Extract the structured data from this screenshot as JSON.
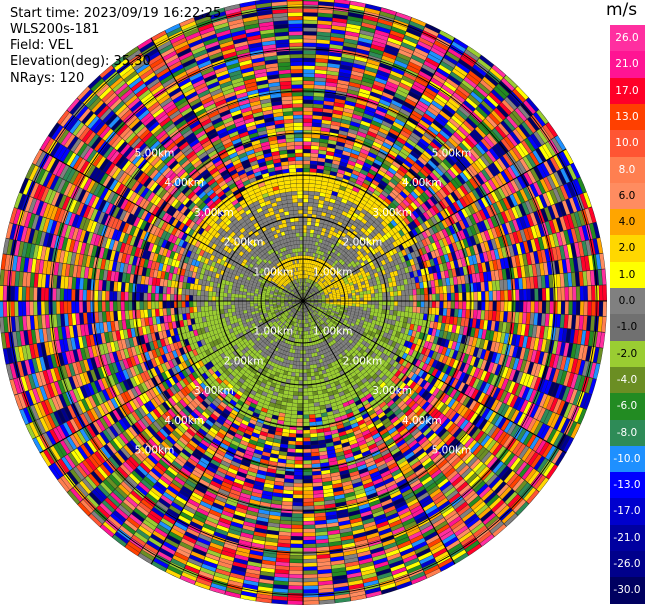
{
  "header": {
    "start_time": "Start time: 2023/09/19 16:22:25",
    "instrument": "WLS200s-181",
    "field": "Field: VEL",
    "elevation": "Elevation(deg): 35.30",
    "nrays": "NRays: 120"
  },
  "colorbar": {
    "unit": "m/s",
    "ticks": [
      "26.0",
      "21.0",
      "17.0",
      "13.0",
      "10.0",
      "8.0",
      "6.0",
      "4.0",
      "2.0",
      "1.0",
      "0.0",
      "-1.0",
      "-2.0",
      "-4.0",
      "-6.0",
      "-8.0",
      "-10.0",
      "-13.0",
      "-17.0",
      "-21.0",
      "-26.0",
      "-30.0"
    ],
    "colors": [
      "#ff2fa0",
      "#ff1493",
      "#ff0028",
      "#ff4000",
      "#ff5533",
      "#ff7f50",
      "#ff8c60",
      "#ffa500",
      "#ffd700",
      "#ffff00",
      "#808080",
      "#707070",
      "#9acd32",
      "#6b8e23",
      "#228b22",
      "#2e8b57",
      "#1e90ff",
      "#0000ff",
      "#0000cd",
      "#0000a0",
      "#00008b",
      "#000060"
    ]
  },
  "chart_data": {
    "type": "polar-ppi",
    "field": "VEL",
    "units": "m/s",
    "n_rays": 120,
    "range_rings": [
      {
        "label": "1.00km"
      },
      {
        "label": "2.00km"
      },
      {
        "label": "3.00km"
      },
      {
        "label": "4.00km"
      },
      {
        "label": "5.00km"
      }
    ],
    "spokes": 12,
    "regions": [
      {
        "name": "inner",
        "range_km": [
          0,
          1.2
        ],
        "values": [
          -1.0,
          0.0,
          -2.0
        ]
      },
      {
        "name": "south-valid",
        "range_km": [
          0.4,
          2.5
        ],
        "azimuth_deg": [
          90,
          270
        ],
        "values": [
          -2.0,
          -4.0,
          0.0
        ]
      },
      {
        "name": "north-valid",
        "range_km": [
          1.2,
          3.0
        ],
        "azimuth_deg": [
          -60,
          60
        ],
        "values": [
          2.0,
          1.0,
          0.0
        ]
      },
      {
        "name": "north-core",
        "range_km": [
          0.5,
          1.0
        ],
        "azimuth_deg": [
          -45,
          90
        ],
        "values": [
          2.0
        ]
      },
      {
        "name": "noise",
        "range_km": [
          3.0,
          7.0
        ],
        "values": "random"
      }
    ]
  }
}
